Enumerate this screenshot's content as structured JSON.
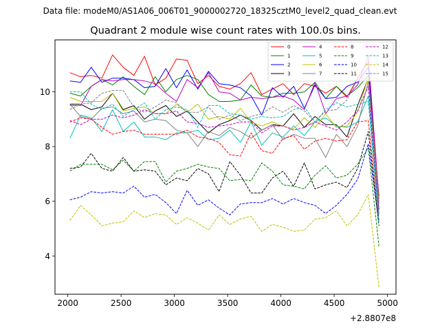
{
  "header": {
    "datafile": "Data file: modeM0/AS1A06_006T01_9000002720_18325cztM0_level2_quad_clean.evt"
  },
  "chart_data": {
    "type": "line",
    "title": "Quadrant 2 module wise count rates with 100.0s bins.",
    "xlabel": "",
    "ylabel": "",
    "x_offset_label": "+2.8807e8",
    "xlim": [
      1880,
      5080
    ],
    "ylim": [
      2.6,
      11.9
    ],
    "xticks": [
      2000,
      2500,
      3000,
      3500,
      4000,
      4500,
      5000
    ],
    "yticks": [
      4,
      6,
      8,
      10
    ],
    "grid": false,
    "legend_position": "top-right",
    "legend_columns": 4,
    "x": [
      2020,
      2120,
      2220,
      2320,
      2420,
      2520,
      2620,
      2720,
      2820,
      2920,
      3020,
      3120,
      3220,
      3320,
      3420,
      3520,
      3620,
      3720,
      3820,
      3920,
      4020,
      4120,
      4220,
      4320,
      4420,
      4520,
      4620,
      4720,
      4820,
      4920
    ],
    "series": [
      {
        "name": "0",
        "color": "#ff0000",
        "style": "solid",
        "values": [
          10.7,
          10.55,
          10.6,
          10.5,
          11.35,
          10.9,
          10.6,
          11.3,
          10.25,
          10.5,
          11.2,
          11.15,
          10.3,
          10.6,
          10.2,
          10.1,
          10.3,
          10.7,
          9.9,
          10.1,
          10.3,
          9.9,
          10.3,
          10.2,
          9.95,
          10.2,
          9.8,
          10.5,
          11.1,
          6.1
        ]
      },
      {
        "name": "1",
        "color": "#008000",
        "style": "solid",
        "values": [
          9.95,
          9.85,
          10.2,
          10.45,
          10.25,
          10.55,
          10.2,
          9.9,
          10.55,
          10.0,
          10.45,
          10.6,
          10.45,
          9.9,
          9.65,
          9.65,
          9.7,
          10.25,
          9.85,
          9.8,
          9.95,
          9.95,
          10.0,
          10.35,
          9.75,
          10.2,
          9.85,
          10.15,
          10.6,
          5.7
        ]
      },
      {
        "name": "2",
        "color": "#0000ff",
        "style": "solid",
        "values": [
          10.4,
          10.35,
          10.9,
          10.35,
          10.5,
          10.5,
          10.45,
          10.15,
          10.2,
          10.85,
          10.15,
          10.8,
          10.1,
          10.75,
          10.3,
          10.25,
          10.15,
          9.85,
          9.15,
          10.15,
          9.8,
          10.2,
          9.4,
          10.25,
          9.75,
          9.8,
          10.2,
          10.35,
          10.9,
          6.0
        ]
      },
      {
        "name": "3",
        "color": "#000000",
        "style": "solid",
        "values": [
          9.55,
          9.55,
          9.35,
          9.45,
          9.95,
          9.35,
          9.5,
          9.0,
          9.3,
          9.5,
          9.1,
          9.3,
          8.9,
          8.5,
          8.8,
          8.95,
          9.15,
          8.95,
          8.6,
          8.8,
          8.75,
          9.2,
          8.7,
          9.1,
          8.8,
          8.8,
          8.35,
          9.5,
          10.5,
          6.2
        ]
      },
      {
        "name": "4",
        "color": "#bf00bf",
        "style": "solid",
        "values": [
          9.5,
          9.5,
          10.2,
          10.45,
          10.4,
          10.45,
          10.45,
          10.4,
          10.3,
          9.95,
          9.65,
          10.45,
          10.15,
          10.7,
          10.0,
          9.95,
          9.7,
          9.8,
          9.75,
          9.8,
          9.85,
          9.7,
          9.35,
          10.35,
          9.2,
          9.75,
          9.85,
          10.25,
          11.3,
          6.1
        ]
      },
      {
        "name": "5",
        "color": "#00bfbf",
        "style": "solid",
        "values": [
          8.3,
          9.15,
          9.05,
          8.55,
          9.35,
          8.55,
          8.9,
          8.35,
          8.35,
          8.25,
          8.5,
          8.5,
          8.6,
          8.25,
          8.3,
          8.6,
          8.15,
          8.9,
          8.05,
          8.5,
          8.35,
          8.75,
          8.4,
          8.9,
          9.05,
          8.75,
          8.7,
          8.9,
          9.85,
          5.5
        ]
      },
      {
        "name": "6",
        "color": "#bfbf00",
        "style": "solid",
        "values": [
          9.8,
          9.65,
          9.65,
          9.65,
          9.95,
          9.3,
          9.4,
          9.45,
          9.2,
          9.2,
          9.55,
          9.25,
          9.55,
          9.0,
          9.1,
          9.0,
          9.4,
          8.9,
          8.75,
          8.9,
          8.75,
          8.65,
          9.05,
          8.7,
          9.2,
          8.7,
          8.75,
          9.25,
          10.55,
          6.0
        ]
      },
      {
        "name": "7",
        "color": "#808080",
        "style": "solid",
        "values": [
          9.55,
          9.1,
          9.0,
          9.4,
          9.45,
          9.2,
          9.3,
          8.9,
          9.0,
          8.95,
          8.6,
          8.5,
          8.0,
          8.55,
          8.4,
          8.7,
          8.55,
          8.3,
          8.6,
          8.8,
          8.25,
          8.45,
          8.3,
          8.3,
          7.6,
          8.45,
          8.0,
          8.75,
          10.4,
          5.9
        ]
      },
      {
        "name": "8",
        "color": "#ff0000",
        "style": "dashed",
        "values": [
          8.9,
          9.05,
          9.0,
          8.7,
          8.45,
          8.55,
          8.6,
          8.45,
          8.45,
          8.45,
          8.45,
          8.6,
          8.35,
          8.3,
          8.15,
          7.7,
          7.65,
          8.5,
          7.85,
          7.75,
          8.3,
          8.4,
          7.9,
          8.2,
          8.3,
          8.2,
          8.25,
          8.9,
          8.95,
          5.3
        ]
      },
      {
        "name": "9",
        "color": "#008000",
        "style": "dashed",
        "values": [
          7.1,
          7.35,
          7.35,
          7.35,
          7.15,
          7.5,
          7.1,
          7.45,
          7.45,
          6.7,
          7.1,
          7.2,
          7.35,
          7.25,
          7.2,
          6.75,
          6.8,
          6.75,
          7.4,
          7.1,
          6.6,
          6.55,
          6.45,
          6.95,
          7.3,
          6.85,
          6.95,
          7.35,
          7.95,
          4.35
        ]
      },
      {
        "name": "10",
        "color": "#0000ff",
        "style": "dashed",
        "values": [
          6.05,
          6.15,
          6.35,
          6.3,
          6.35,
          6.3,
          6.55,
          6.15,
          6.25,
          5.95,
          5.55,
          6.4,
          5.85,
          6.05,
          5.75,
          5.5,
          5.9,
          5.95,
          5.95,
          6.1,
          5.9,
          6.1,
          5.95,
          5.85,
          5.55,
          5.85,
          6.25,
          6.8,
          8.1,
          5.2
        ]
      },
      {
        "name": "11",
        "color": "#000000",
        "style": "dashed",
        "values": [
          7.2,
          7.25,
          7.75,
          7.2,
          7.1,
          7.6,
          7.1,
          7.15,
          7.1,
          6.6,
          6.85,
          6.75,
          7.2,
          7.0,
          6.35,
          7.45,
          6.95,
          6.3,
          6.3,
          6.85,
          7.1,
          6.55,
          7.4,
          6.45,
          6.6,
          6.7,
          6.5,
          7.2,
          8.55,
          5.1
        ]
      },
      {
        "name": "12",
        "color": "#bf00bf",
        "style": "dashed",
        "values": [
          8.95,
          8.8,
          9.0,
          9.0,
          9.15,
          9.05,
          9.15,
          9.35,
          9.2,
          9.2,
          9.3,
          8.9,
          8.85,
          8.7,
          8.75,
          8.8,
          8.9,
          8.9,
          8.5,
          8.75,
          8.75,
          8.6,
          8.7,
          8.9,
          8.75,
          8.6,
          8.9,
          9.3,
          10.2,
          5.6
        ]
      },
      {
        "name": "13",
        "color": "#00bfbf",
        "style": "dashed",
        "values": [
          10.0,
          10.0,
          9.55,
          9.35,
          9.55,
          9.1,
          9.35,
          9.6,
          9.0,
          9.35,
          9.45,
          9.35,
          8.7,
          9.5,
          9.5,
          9.2,
          9.15,
          9.0,
          9.1,
          9.05,
          9.1,
          9.35,
          9.45,
          8.9,
          9.35,
          9.6,
          9.45,
          9.55,
          9.65,
          5.2
        ]
      },
      {
        "name": "14",
        "color": "#bfbf00",
        "style": "dashed",
        "values": [
          5.3,
          5.85,
          5.5,
          5.1,
          5.2,
          5.25,
          5.65,
          5.4,
          5.55,
          5.5,
          5.15,
          5.4,
          5.2,
          4.95,
          5.5,
          5.15,
          5.35,
          5.45,
          4.9,
          5.15,
          5.05,
          4.9,
          4.95,
          5.35,
          5.4,
          5.65,
          5.1,
          5.5,
          6.25,
          2.85
        ]
      },
      {
        "name": "15",
        "color": "#808080",
        "style": "dashed",
        "values": [
          9.35,
          9.55,
          9.6,
          9.95,
          10.05,
          10.05,
          9.45,
          9.25,
          9.45,
          9.7,
          9.6,
          9.25,
          9.25,
          9.45,
          9.0,
          9.15,
          8.95,
          9.1,
          9.2,
          9.45,
          9.25,
          9.5,
          9.3,
          8.9,
          9.3,
          9.35,
          9.7,
          10.5,
          10.45,
          5.8
        ]
      }
    ]
  }
}
